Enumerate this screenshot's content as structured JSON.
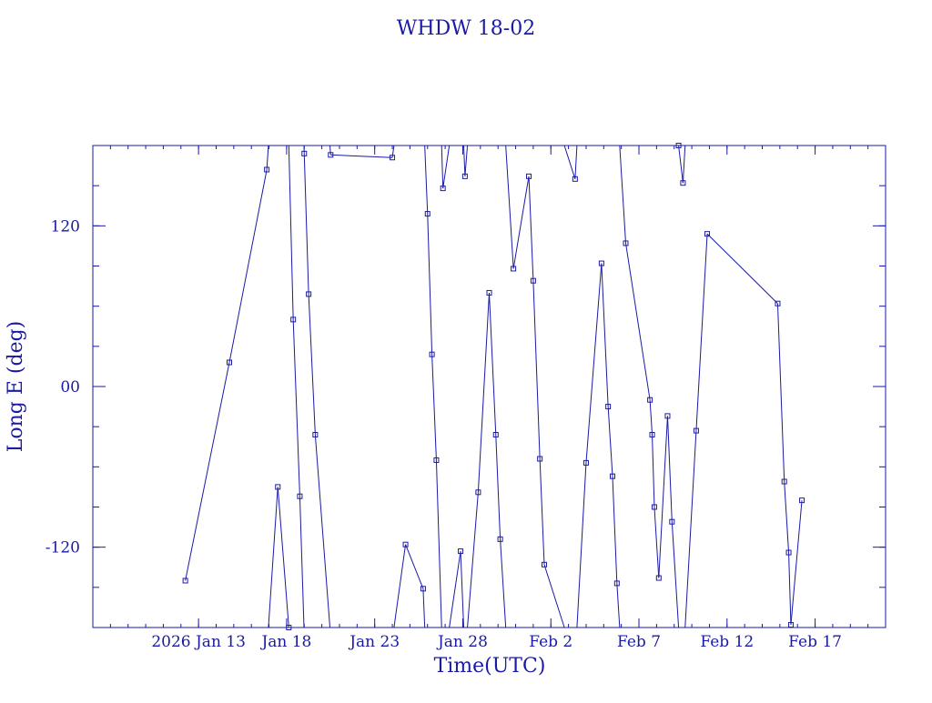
{
  "colors": {
    "ink": "#1a1aa6",
    "background": "#ffffff"
  },
  "chart_data": {
    "type": "line",
    "title": "WHDW 18-02",
    "xlabel": "Time(UTC)",
    "ylabel": "Long E (deg)",
    "x_unit": "date (UTC, Jan-Feb 2026)",
    "xlim": [
      "2026-01-07T00:00",
      "2026-02-21T00:00"
    ],
    "ylim": [
      -180,
      180
    ],
    "y_wraps": true,
    "grid": false,
    "marker": "square",
    "xticks": [
      {
        "label": "2026 Jan 13",
        "value": "2026-01-13"
      },
      {
        "label": "Jan 18",
        "value": "2026-01-18"
      },
      {
        "label": "Jan 23",
        "value": "2026-01-23"
      },
      {
        "label": "Jan 28",
        "value": "2026-01-28"
      },
      {
        "label": "Feb  2",
        "value": "2026-02-02"
      },
      {
        "label": "Feb  7",
        "value": "2026-02-07"
      },
      {
        "label": "Feb 12",
        "value": "2026-02-12"
      },
      {
        "label": "Feb 17",
        "value": "2026-02-17"
      }
    ],
    "yticks": [
      {
        "label": "-120",
        "value": -120
      },
      {
        "label": "00",
        "value": 0
      },
      {
        "label": "120",
        "value": 120
      }
    ],
    "series": [
      {
        "x": [
          "2026-01-12T06:00",
          "2026-01-14T18:00",
          "2026-01-16T21:00",
          "2026-01-17T12:00",
          "2026-01-18T03:00",
          "2026-01-18T09:00",
          "2026-01-18T18:00",
          "2026-01-19T00:00",
          "2026-01-19T06:00",
          "2026-01-19T15:00",
          "2026-01-20T12:00",
          "2026-01-24T00:00",
          "2026-01-24T18:00",
          "2026-01-25T18:00",
          "2026-01-26T00:00",
          "2026-01-26T06:00",
          "2026-01-26T12:00",
          "2026-01-26T21:00",
          "2026-01-27T21:00",
          "2026-01-28T03:00",
          "2026-01-28T21:00",
          "2026-01-29T12:00",
          "2026-01-29T21:00",
          "2026-01-30T03:00",
          "2026-01-30T21:00",
          "2026-01-31T18:00",
          "2026-02-01T00:00",
          "2026-02-01T09:00",
          "2026-02-01T15:00",
          "2026-02-03T09:00",
          "2026-02-04T00:00",
          "2026-02-04T21:00",
          "2026-02-05T06:00",
          "2026-02-05T12:00",
          "2026-02-05T18:00",
          "2026-02-06T06:00",
          "2026-02-07T15:00",
          "2026-02-07T18:00",
          "2026-02-07T21:00",
          "2026-02-08T03:00",
          "2026-02-08T15:00",
          "2026-02-08T21:00",
          "2026-02-09T06:00",
          "2026-02-09T12:00",
          "2026-02-10T06:00",
          "2026-02-10T21:00",
          "2026-02-14T21:00",
          "2026-02-15T06:00",
          "2026-02-15T12:00",
          "2026-02-15T15:00",
          "2026-02-16T06:00"
        ],
        "y": [
          -145,
          18,
          162,
          -75,
          -180,
          50,
          -82,
          174,
          69,
          -36,
          173,
          171,
          -118,
          -151,
          129,
          24,
          -55,
          148,
          -123,
          157,
          -79,
          70,
          -36,
          -114,
          88,
          157,
          79,
          -54,
          -133,
          155,
          -57,
          92,
          -15,
          -67,
          -147,
          107,
          -10,
          -36,
          -90,
          -143,
          -22,
          -101,
          180,
          152,
          -33,
          114,
          62,
          -71,
          -124,
          -178,
          -85
        ]
      }
    ]
  }
}
